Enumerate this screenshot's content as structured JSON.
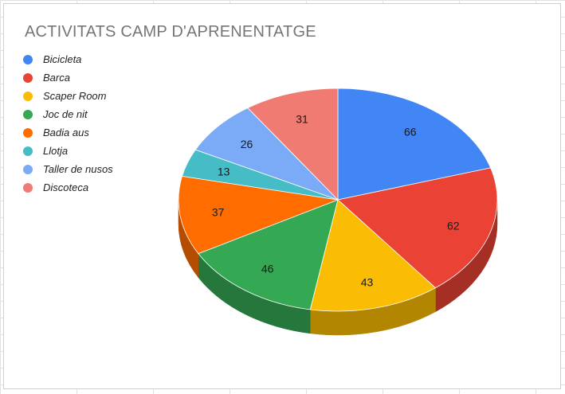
{
  "chart_data": {
    "type": "pie",
    "title": "ACTIVITATS CAMP D'APRENENTATGE",
    "legend_position": "left",
    "style": "3d",
    "slices": [
      {
        "label": "Bicicleta",
        "value": 66,
        "color": "#4285f4",
        "side_color": "#2f5fae"
      },
      {
        "label": "Barca",
        "value": 62,
        "color": "#ea4335",
        "side_color": "#a62f25"
      },
      {
        "label": "Scaper Room",
        "value": 43,
        "color": "#fbbc04",
        "side_color": "#b28600"
      },
      {
        "label": "Joc de nit",
        "value": 46,
        "color": "#34a853",
        "side_color": "#25773b"
      },
      {
        "label": "Badia aus",
        "value": 37,
        "color": "#ff6d01",
        "side_color": "#b54d00"
      },
      {
        "label": "Llotja",
        "value": 13,
        "color": "#46bdc6",
        "side_color": "#32868c"
      },
      {
        "label": "Taller de nusos",
        "value": 26,
        "color": "#7baaf7",
        "side_color": "#5779af"
      },
      {
        "label": "Discoteca",
        "value": 31,
        "color": "#f07b72",
        "side_color": "#aa5751"
      }
    ]
  }
}
